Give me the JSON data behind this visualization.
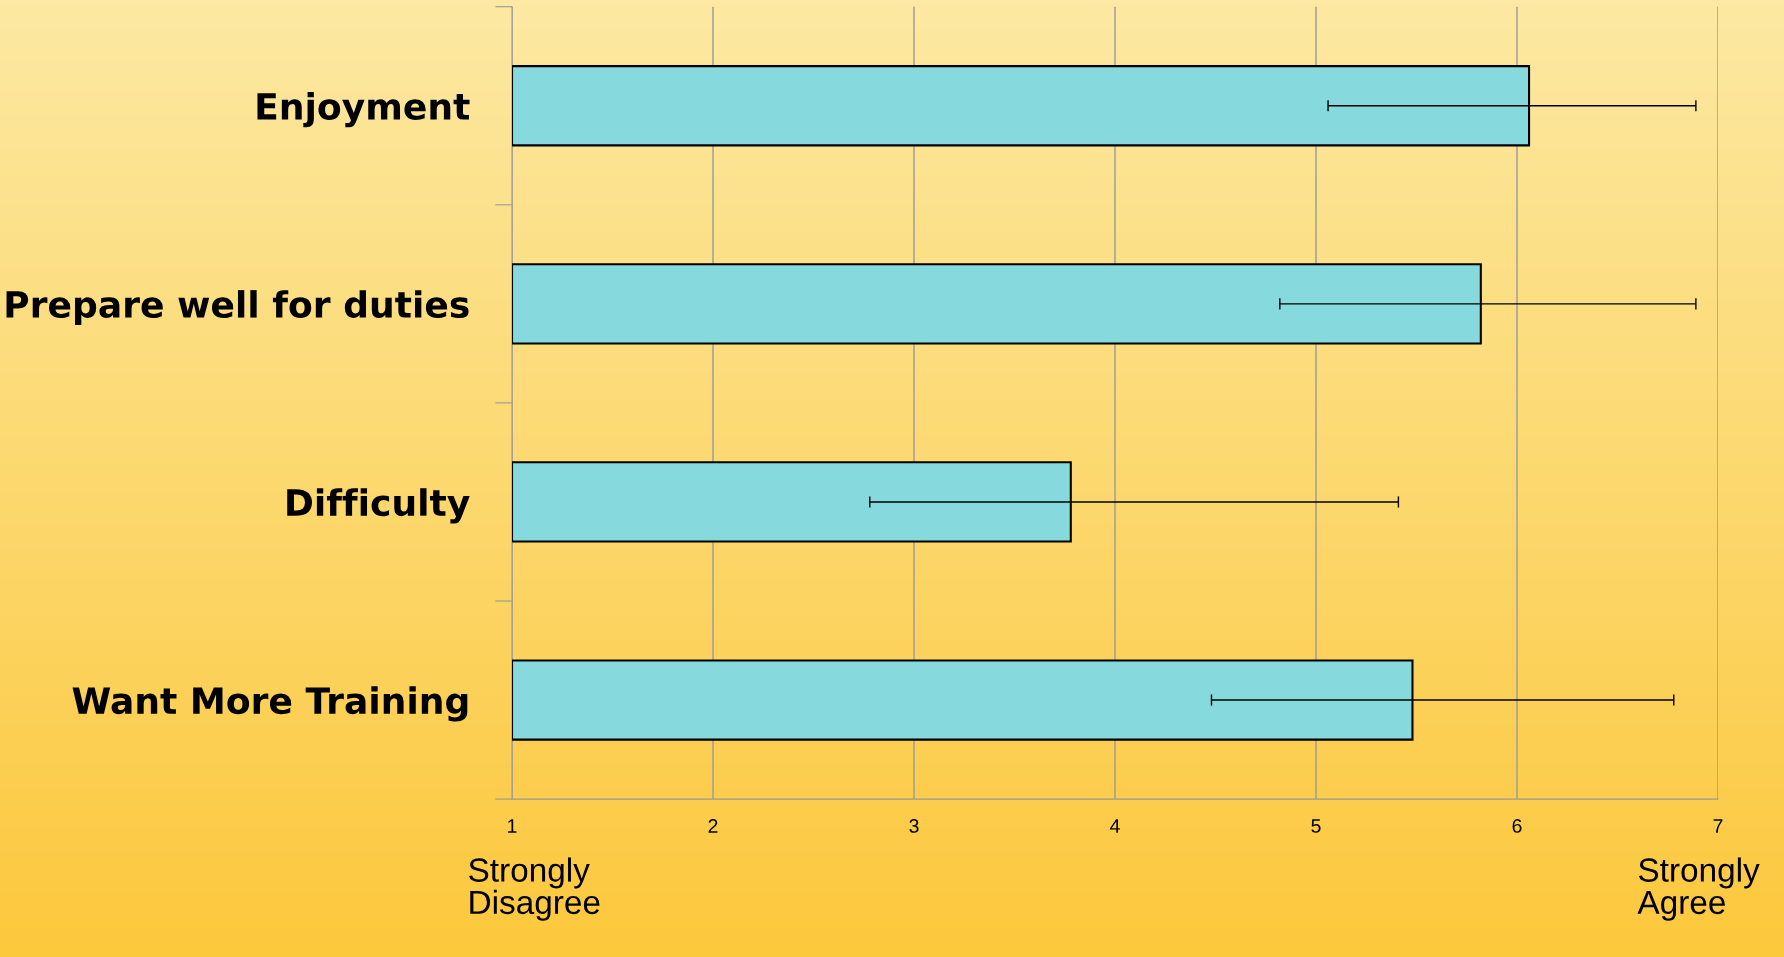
{
  "chart_data": {
    "type": "bar",
    "orientation": "horizontal",
    "categories": [
      "Enjoyment",
      "Prepare well for duties",
      "Difficulty",
      "Want More Training"
    ],
    "values": [
      6.06,
      5.82,
      3.78,
      5.48
    ],
    "errors": [
      [
        5.06,
        6.89
      ],
      [
        4.82,
        6.89
      ],
      [
        2.78,
        5.41
      ],
      [
        4.48,
        6.78
      ]
    ],
    "color": "#86d9dd",
    "xlim": [
      1,
      7
    ],
    "xticks": [
      1,
      2,
      3,
      4,
      5,
      6,
      7
    ],
    "grid": "x",
    "annotations": [
      "Strongly\nDisagree",
      "Strongly\nAgree"
    ]
  }
}
